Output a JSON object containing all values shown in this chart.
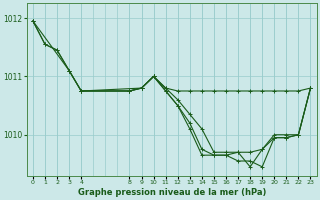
{
  "xlabel": "Graphe pression niveau de la mer (hPa)",
  "background_color": "#cce8e8",
  "plot_bg_color": "#cce8e8",
  "line_color": "#1a5c1a",
  "grid_color": "#99cccc",
  "tick_label_color": "#1a5c1a",
  "xlabel_color": "#1a5c1a",
  "ylim": [
    1009.3,
    1012.25
  ],
  "yticks": [
    1010,
    1011,
    1012
  ],
  "xlim": [
    -0.5,
    23.5
  ],
  "xtick_positions": [
    0,
    1,
    2,
    3,
    4,
    8,
    9,
    10,
    11,
    12,
    13,
    14,
    15,
    16,
    17,
    18,
    19,
    20,
    21,
    22,
    23
  ],
  "xtick_labels": [
    "0",
    "1",
    "2",
    "3",
    "4",
    "8",
    "9",
    "10",
    "11",
    "12",
    "13",
    "14",
    "15",
    "16",
    "17",
    "18",
    "19",
    "20",
    "21",
    "22",
    "23"
  ],
  "series": [
    {
      "x": [
        0,
        1,
        2,
        3,
        4,
        8,
        9,
        10,
        11,
        12,
        13,
        14,
        15,
        16,
        17,
        18,
        19,
        20,
        21,
        22,
        23
      ],
      "y": [
        1011.95,
        1011.55,
        1011.45,
        1011.1,
        1010.75,
        1010.75,
        1010.8,
        1011.0,
        1010.8,
        1010.75,
        1010.75,
        1010.75,
        1010.75,
        1010.75,
        1010.75,
        1010.75,
        1010.75,
        1010.75,
        1010.75,
        1010.75,
        1010.8
      ]
    },
    {
      "x": [
        0,
        1,
        2,
        3,
        4,
        8,
        9,
        10,
        11,
        12,
        13,
        14,
        15,
        16,
        17,
        18,
        19,
        20,
        21,
        22,
        23
      ],
      "y": [
        1011.95,
        1011.55,
        1011.45,
        1011.1,
        1010.75,
        1010.75,
        1010.8,
        1011.0,
        1010.8,
        1010.6,
        1010.35,
        1010.1,
        1009.7,
        1009.7,
        1009.7,
        1009.7,
        1009.75,
        1010.0,
        1010.0,
        1010.0,
        1010.8
      ]
    },
    {
      "x": [
        0,
        3,
        4,
        9,
        10,
        11,
        12,
        13,
        14,
        15,
        16,
        17,
        18,
        19,
        20,
        21,
        22,
        23
      ],
      "y": [
        1011.95,
        1011.1,
        1010.75,
        1010.8,
        1011.0,
        1010.75,
        1010.5,
        1010.2,
        1009.75,
        1009.65,
        1009.65,
        1009.55,
        1009.55,
        1009.45,
        1009.95,
        1009.95,
        1010.0,
        1010.8
      ]
    },
    {
      "x": [
        4,
        8,
        9,
        10,
        11,
        12,
        13,
        14,
        15,
        16,
        17,
        18,
        19,
        20,
        21,
        22,
        23
      ],
      "y": [
        1010.75,
        1010.75,
        1010.8,
        1011.0,
        1010.75,
        1010.5,
        1010.1,
        1009.65,
        1009.65,
        1009.65,
        1009.7,
        1009.45,
        1009.75,
        1009.95,
        1009.95,
        1010.0,
        1010.8
      ]
    }
  ],
  "marker": "+"
}
